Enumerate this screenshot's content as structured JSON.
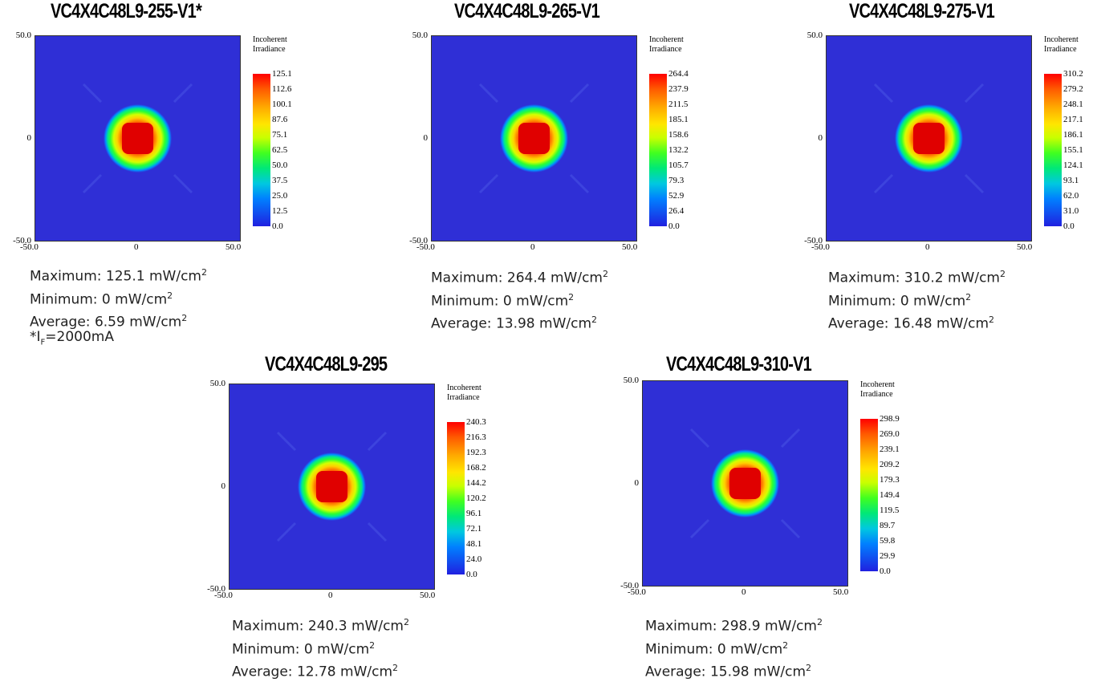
{
  "chart_data": [
    {
      "type": "heatmap",
      "title": "VC4X4C48L9-255-V1*",
      "legend_title": [
        "Incoherent",
        "Irradiance"
      ],
      "xlim": [
        -50.0,
        50.0
      ],
      "ylim": [
        -50.0,
        50.0
      ],
      "x_ticks": [
        "-50.0",
        "0",
        "50.0"
      ],
      "y_ticks": [
        "50.0",
        "0",
        "-50.0"
      ],
      "colorbar_ticks": [
        "125.1",
        "112.6",
        "100.1",
        "87.6",
        "75.1",
        "62.5",
        "50.0",
        "37.5",
        "25.0",
        "12.5",
        "0.0"
      ],
      "maximum": "125.1",
      "minimum": "0",
      "average": "6.59",
      "unit": "mW/cm",
      "unit_sup": "2",
      "labels": {
        "max": "Maximum:",
        "min": "Minimum:",
        "avg": "Average:"
      },
      "footnote": {
        "prefix": "*I",
        "sub": "F",
        "suffix": "=2000mA"
      }
    },
    {
      "type": "heatmap",
      "title": "VC4X4C48L9-265-V1",
      "legend_title": [
        "Incoherent",
        "Irradiance"
      ],
      "xlim": [
        -50.0,
        50.0
      ],
      "ylim": [
        -50.0,
        50.0
      ],
      "x_ticks": [
        "-50.0",
        "0",
        "50.0"
      ],
      "y_ticks": [
        "50.0",
        "0",
        "-50.0"
      ],
      "colorbar_ticks": [
        "264.4",
        "237.9",
        "211.5",
        "185.1",
        "158.6",
        "132.2",
        "105.7",
        "79.3",
        "52.9",
        "26.4",
        "0.0"
      ],
      "maximum": "264.4",
      "minimum": "0",
      "average": "13.98",
      "unit": "mW/cm",
      "unit_sup": "2",
      "labels": {
        "max": "Maximum:",
        "min": "Minimum:",
        "avg": "Average:"
      }
    },
    {
      "type": "heatmap",
      "title": "VC4X4C48L9-275-V1",
      "legend_title": [
        "Incoherent",
        "Irradiance"
      ],
      "xlim": [
        -50.0,
        50.0
      ],
      "ylim": [
        -50.0,
        50.0
      ],
      "x_ticks": [
        "-50.0",
        "0",
        "50.0"
      ],
      "y_ticks": [
        "50.0",
        "0",
        "-50.0"
      ],
      "colorbar_ticks": [
        "310.2",
        "279.2",
        "248.1",
        "217.1",
        "186.1",
        "155.1",
        "124.1",
        "93.1",
        "62.0",
        "31.0",
        "0.0"
      ],
      "maximum": "310.2",
      "minimum": "0",
      "average": "16.48",
      "unit": "mW/cm",
      "unit_sup": "2",
      "labels": {
        "max": "Maximum:",
        "min": "Minimum:",
        "avg": "Average:"
      }
    },
    {
      "type": "heatmap",
      "title": "VC4X4C48L9-295",
      "legend_title": [
        "Incoherent",
        "Irradiance"
      ],
      "xlim": [
        -50.0,
        50.0
      ],
      "ylim": [
        -50.0,
        50.0
      ],
      "x_ticks": [
        "-50.0",
        "0",
        "50.0"
      ],
      "y_ticks": [
        "50.0",
        "0",
        "-50.0"
      ],
      "colorbar_ticks": [
        "240.3",
        "216.3",
        "192.3",
        "168.2",
        "144.2",
        "120.2",
        "96.1",
        "72.1",
        "48.1",
        "24.0",
        "0.0"
      ],
      "maximum": "240.3",
      "minimum": "0",
      "average": "12.78",
      "unit": "mW/cm",
      "unit_sup": "2",
      "labels": {
        "max": "Maximum:",
        "min": "Minimum:",
        "avg": "Average:"
      }
    },
    {
      "type": "heatmap",
      "title": "VC4X4C48L9-310-V1",
      "legend_title": [
        "Incoherent",
        "Irradiance"
      ],
      "xlim": [
        -50.0,
        50.0
      ],
      "ylim": [
        -50.0,
        50.0
      ],
      "x_ticks": [
        "-50.0",
        "0",
        "50.0"
      ],
      "y_ticks": [
        "50.0",
        "0",
        "-50.0"
      ],
      "colorbar_ticks": [
        "298.9",
        "269.0",
        "239.1",
        "209.2",
        "179.3",
        "149.4",
        "119.5",
        "89.7",
        "59.8",
        "29.9",
        "0.0"
      ],
      "maximum": "298.9",
      "minimum": "0",
      "average": "15.98",
      "unit": "mW/cm",
      "unit_sup": "2",
      "labels": {
        "max": "Maximum:",
        "min": "Minimum:",
        "avg": "Average:"
      }
    }
  ]
}
